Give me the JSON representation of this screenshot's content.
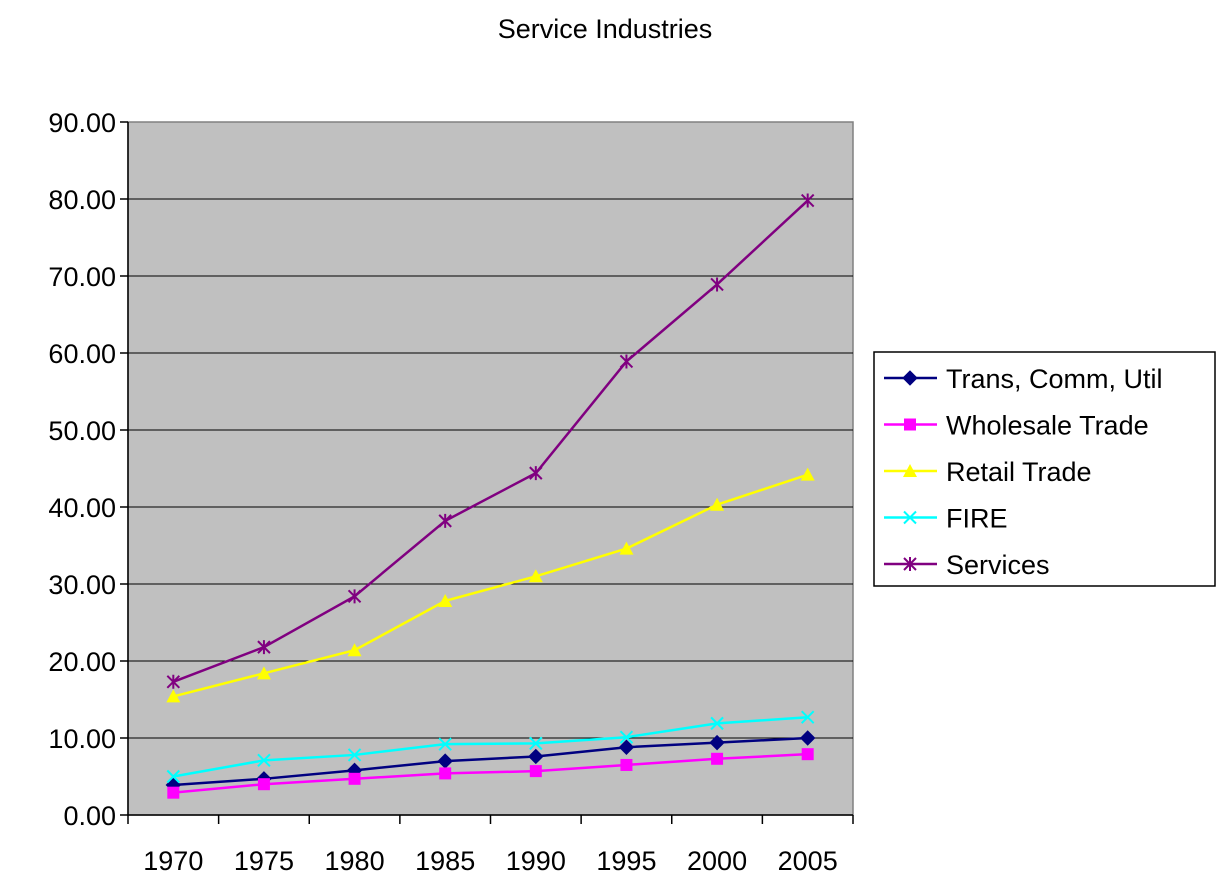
{
  "chart_data": {
    "type": "line",
    "title": "Service Industries",
    "xlabel": "",
    "ylabel": "",
    "categories": [
      "1970",
      "1975",
      "1980",
      "1985",
      "1990",
      "1995",
      "2000",
      "2005"
    ],
    "ylim": [
      0,
      90
    ],
    "yticks": [
      "0.00",
      "10.00",
      "20.00",
      "30.00",
      "40.00",
      "50.00",
      "60.00",
      "70.00",
      "80.00",
      "90.00"
    ],
    "grid": true,
    "plot_background": "#c0c0c0",
    "legend_position": "right",
    "series": [
      {
        "name": "Trans, Comm, Util",
        "color": "#000080",
        "marker": "diamond",
        "values": [
          3.9,
          4.7,
          5.8,
          7.0,
          7.6,
          8.8,
          9.4,
          10.0
        ]
      },
      {
        "name": "Wholesale Trade",
        "color": "#ff00ff",
        "marker": "square",
        "values": [
          2.9,
          4.0,
          4.7,
          5.4,
          5.7,
          6.5,
          7.3,
          7.9
        ]
      },
      {
        "name": "Retail Trade",
        "color": "#ffff00",
        "marker": "triangle",
        "values": [
          15.4,
          18.4,
          21.4,
          27.8,
          31.0,
          34.6,
          40.3,
          44.2
        ]
      },
      {
        "name": "FIRE",
        "color": "#00ffff",
        "marker": "x",
        "values": [
          5.0,
          7.1,
          7.8,
          9.2,
          9.3,
          10.1,
          11.9,
          12.7
        ]
      },
      {
        "name": "Services",
        "color": "#800080",
        "marker": "star",
        "values": [
          17.3,
          21.8,
          28.4,
          38.2,
          44.4,
          58.9,
          68.9,
          79.8
        ]
      }
    ]
  }
}
